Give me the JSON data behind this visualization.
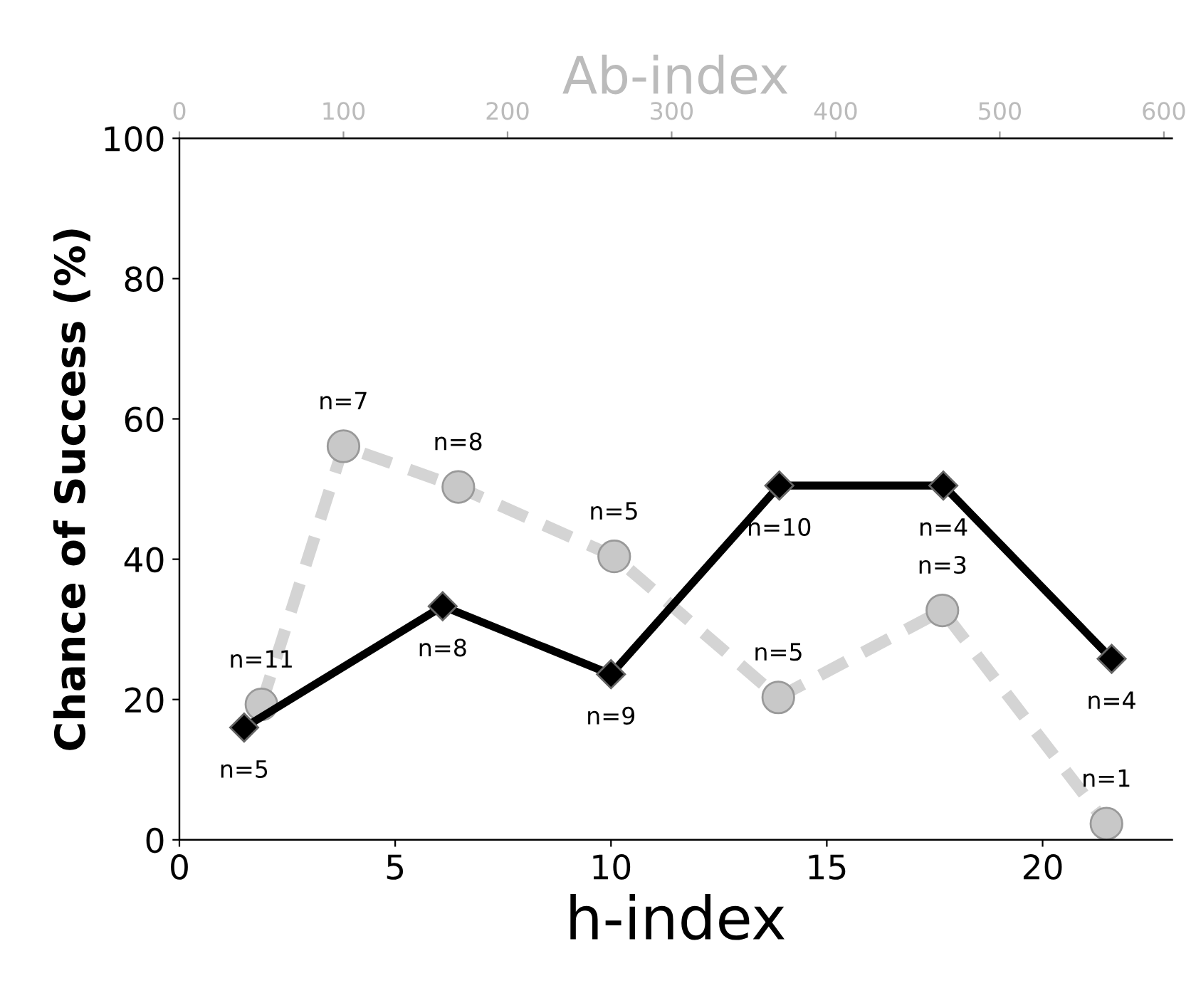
{
  "chart_data": {
    "type": "line",
    "xlabel": "h-index",
    "ylabel": "Chance of Success (%)",
    "x2label": "Ab-index",
    "xlim": [
      0,
      23
    ],
    "xticks": [
      0,
      5,
      10,
      15,
      20
    ],
    "x2lim": [
      0,
      605
    ],
    "x2ticks": [
      0,
      100,
      200,
      300,
      400,
      500,
      600
    ],
    "ylim": [
      0,
      100
    ],
    "yticks": [
      0,
      20,
      40,
      60,
      80,
      100
    ],
    "grid": false,
    "legend": false,
    "series": [
      {
        "color": "#000000",
        "marker": "diamond",
        "line_style": "solid",
        "x": [
          1.5,
          6.1,
          10,
          13.9,
          17.7,
          21.6
        ],
        "values": [
          16.0,
          33.3,
          23.6,
          50.5,
          50.5,
          25.8
        ]
      },
      {
        "color": "#d4d4d4",
        "marker": "circle",
        "line_style": "dashed",
        "axis": "x2",
        "x": [
          50,
          100,
          170,
          265,
          365,
          465,
          565
        ],
        "values": [
          19.3,
          56.1,
          50.3,
          40.4,
          20.3,
          32.7,
          2.3
        ]
      }
    ],
    "annotations": [
      {
        "text": "n=5",
        "x": 1.5,
        "y": 16.0
      },
      {
        "text": "n=8",
        "x": 6.1,
        "y": 33.3
      },
      {
        "text": "n=9",
        "x": 10,
        "y": 23.6
      },
      {
        "text": "n=10",
        "x": 13.9,
        "y": 50.5
      },
      {
        "text": "n=4",
        "x": 17.7,
        "y": 50.5
      },
      {
        "text": "n=4",
        "x": 21.6,
        "y": 25.8
      },
      {
        "text": "n=11",
        "x": 1.9,
        "y": 19.3
      },
      {
        "text": "n=7",
        "x": 3.8,
        "y": 56.1
      },
      {
        "text": "n=8",
        "x": 6.46,
        "y": 50.3
      },
      {
        "text": "n=5",
        "x": 10.07,
        "y": 40.4
      },
      {
        "text": "n=5",
        "x": 13.88,
        "y": 20.3
      },
      {
        "text": "n=3",
        "x": 17.68,
        "y": 32.7
      },
      {
        "text": "n=1",
        "x": 21.48,
        "y": 2.3
      }
    ]
  }
}
